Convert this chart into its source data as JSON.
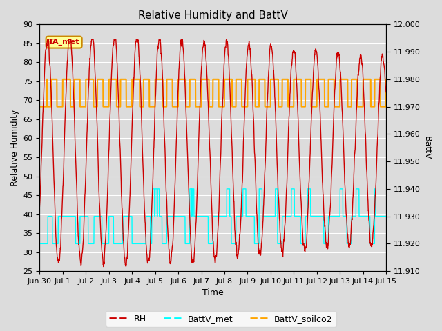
{
  "title": "Relative Humidity and BattV",
  "xlabel": "Time",
  "ylabel_left": "Relative Humidity",
  "ylabel_right": "BattV",
  "ylim_left": [
    25,
    90
  ],
  "ylim_right": [
    11.91,
    12.0
  ],
  "yticks_left": [
    25,
    30,
    35,
    40,
    45,
    50,
    55,
    60,
    65,
    70,
    75,
    80,
    85,
    90
  ],
  "yticks_right_vals": [
    11.91,
    11.92,
    11.93,
    11.94,
    11.95,
    11.96,
    11.97,
    11.98,
    11.99,
    12.0
  ],
  "annotation_text": "TA_met",
  "annotation_box_facecolor": "#FFFF99",
  "annotation_box_edgecolor": "#CC8800",
  "rh_color": "#CC0000",
  "battv_met_color": "#00FFFF",
  "battv_soilco2_color": "#FFA500",
  "bg_color": "#DCDCDC",
  "legend_entries": [
    "RH",
    "BattV_met",
    "BattV_soilco2"
  ],
  "x_tick_labels": [
    "Jun 30",
    "Jul 1",
    "Jul 2",
    "Jul 3",
    "Jul 4",
    "Jul 5",
    "Jul 6",
    "Jul 7",
    "Jul 8",
    "Jul 9",
    "Jul 10",
    "Jul 11",
    "Jul 12",
    "Jul 13",
    "Jul 14",
    "Jul 15"
  ],
  "x_tick_positions": [
    0,
    1,
    2,
    3,
    4,
    5,
    6,
    7,
    8,
    9,
    10,
    11,
    12,
    13,
    14,
    15
  ],
  "rh_lw": 1.0,
  "batt_lw": 1.0,
  "grid_color": "#FFFFFF",
  "title_fontsize": 11,
  "axis_label_fontsize": 9,
  "tick_fontsize": 8,
  "legend_fontsize": 9,
  "annot_fontsize": 8
}
